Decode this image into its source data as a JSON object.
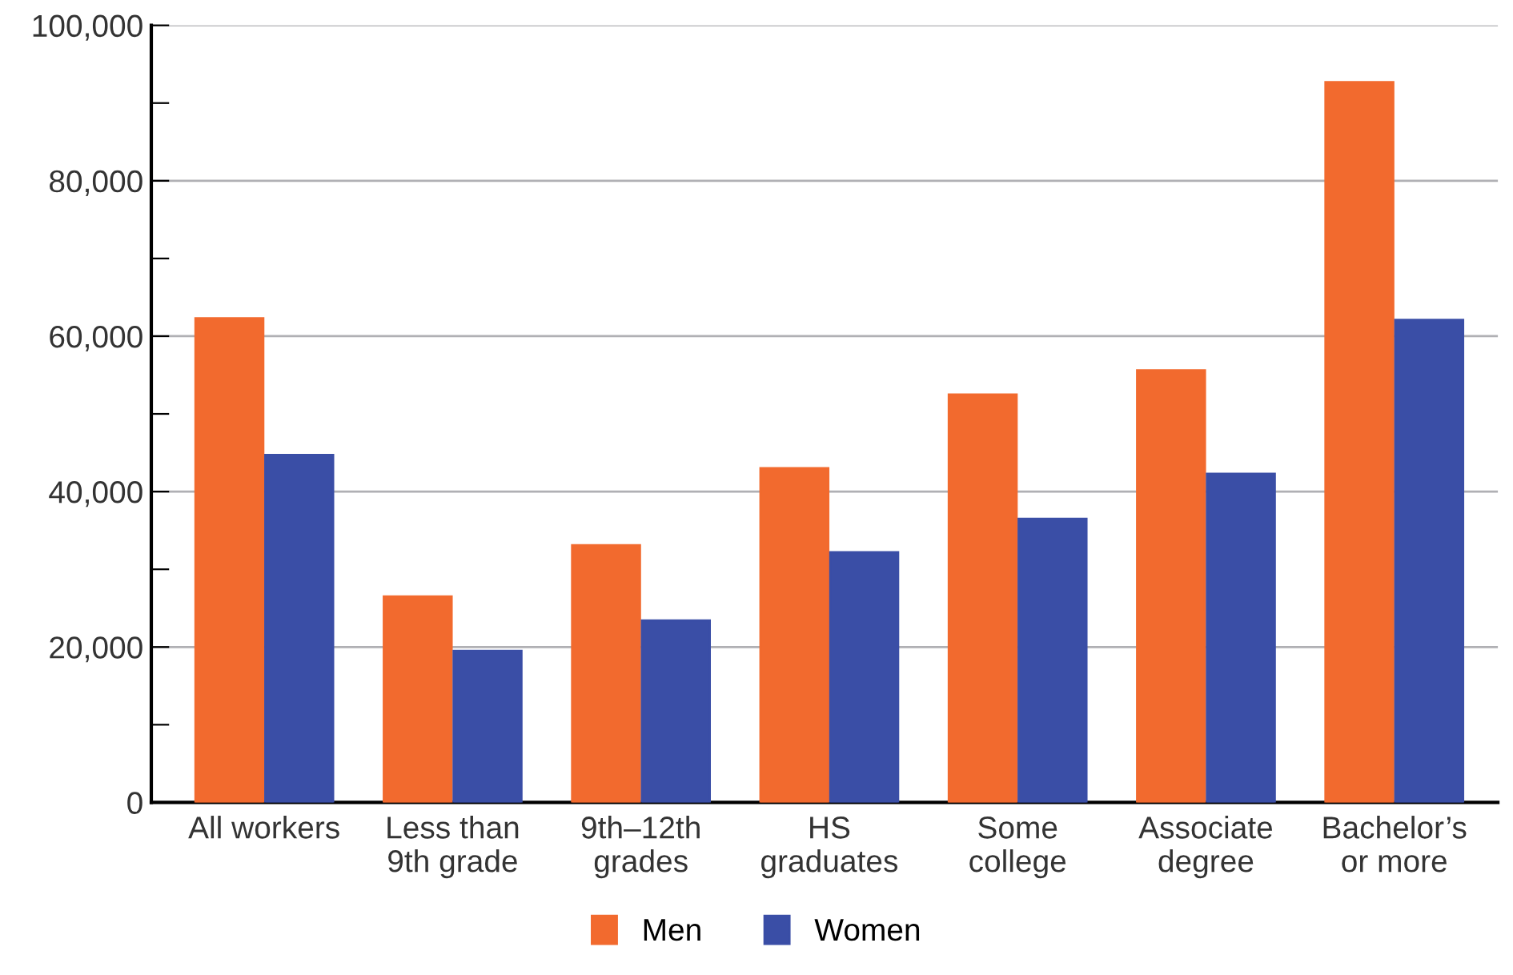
{
  "chart_data": {
    "type": "bar",
    "categories": [
      "All workers",
      "Less than\n9th grade",
      "9th–12th\ngrades",
      "HS\ngraduates",
      "Some\ncollege",
      "Associate\ndegree",
      "Bachelor’s\nor more"
    ],
    "series": [
      {
        "name": "Men",
        "color": "#f26a2e",
        "values": [
          62300,
          26500,
          33100,
          43000,
          52500,
          55600,
          92700
        ]
      },
      {
        "name": "Women",
        "color": "#3a4ea6",
        "values": [
          44700,
          19500,
          23400,
          32200,
          36500,
          42300,
          62100
        ]
      }
    ],
    "ylim": [
      0,
      100000
    ],
    "yticks": [
      0,
      {
        "value": 10000,
        "label": null
      },
      {
        "value": 20000,
        "label": "20,000"
      },
      {
        "value": 30000,
        "label": null
      },
      {
        "value": 40000,
        "label": "40,000"
      },
      {
        "value": 50000,
        "label": null
      },
      {
        "value": 60000,
        "label": "60,000"
      },
      {
        "value": 70000,
        "label": null
      },
      {
        "value": 80000,
        "label": "80,000"
      },
      {
        "value": 90000,
        "label": null
      },
      {
        "value": 100000,
        "label": "100,000"
      }
    ],
    "grid": "y",
    "legend": "bottom"
  }
}
